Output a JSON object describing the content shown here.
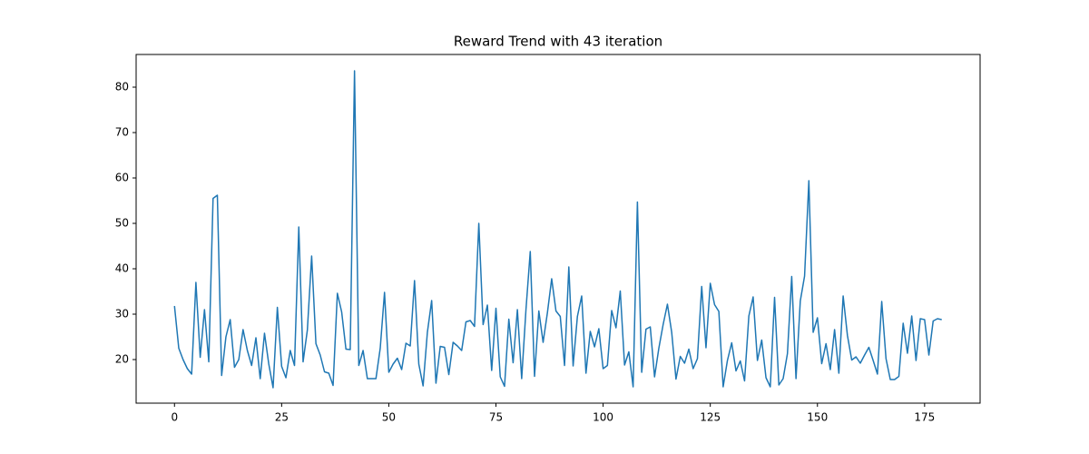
{
  "chart_data": {
    "type": "line",
    "title": "Reward Trend with 43 iteration",
    "x": [
      0,
      1,
      2,
      3,
      4,
      5,
      6,
      7,
      8,
      9,
      10,
      11,
      12,
      13,
      14,
      15,
      16,
      17,
      18,
      19,
      20,
      21,
      22,
      23,
      24,
      25,
      26,
      27,
      28,
      29,
      30,
      31,
      32,
      33,
      34,
      35,
      36,
      37,
      38,
      39,
      40,
      41,
      42,
      43,
      44,
      45,
      46,
      47,
      48,
      49,
      50,
      51,
      52,
      53,
      54,
      55,
      56,
      57,
      58,
      59,
      60,
      61,
      62,
      63,
      64,
      65,
      66,
      67,
      68,
      69,
      70,
      71,
      72,
      73,
      74,
      75,
      76,
      77,
      78,
      79,
      80,
      81,
      82,
      83,
      84,
      85,
      86,
      87,
      88,
      89,
      90,
      91,
      92,
      93,
      94,
      95,
      96,
      97,
      98,
      99,
      100,
      101,
      102,
      103,
      104,
      105,
      106,
      107,
      108,
      109,
      110,
      111,
      112,
      113,
      114,
      115,
      116,
      117,
      118,
      119,
      120,
      121,
      122,
      123,
      124,
      125,
      126,
      127,
      128,
      129,
      130,
      131,
      132,
      133,
      134,
      135,
      136,
      137,
      138,
      139,
      140,
      141,
      142,
      143,
      144,
      145,
      146,
      147,
      148,
      149,
      150,
      151,
      152,
      153,
      154,
      155,
      156,
      157,
      158,
      159,
      160,
      161,
      162,
      163,
      164,
      165,
      166,
      167,
      168,
      169,
      170,
      171,
      172,
      173,
      174,
      175,
      176,
      177,
      178,
      179
    ],
    "series": [
      {
        "color": "#1f77b4",
        "values": [
          31.8,
          22.5,
          20,
          18,
          16.8,
          37,
          20.5,
          31,
          19.5,
          55.5,
          56.2,
          16.5,
          25,
          28.8,
          18.3,
          20,
          26.6,
          22,
          18.7,
          24.8,
          15.8,
          25.8,
          19,
          13.8,
          31.5,
          18.5,
          16,
          22,
          18.7,
          49.2,
          19.5,
          26.5,
          42.8,
          23.5,
          21,
          17.3,
          17,
          14.3,
          34.6,
          30.5,
          22.3,
          22.2,
          83.6,
          18.7,
          22,
          15.8,
          15.8,
          15.8,
          22.5,
          34.8,
          17.2,
          19,
          20.3,
          17.8,
          23.6,
          23,
          37.4,
          19,
          14.2,
          26,
          33,
          14.8,
          22.9,
          22.7,
          16.7,
          23.8,
          23,
          22,
          28.3,
          28.6,
          27.3,
          50,
          27.7,
          32,
          17.6,
          31.3,
          16.2,
          14.1,
          28.9,
          19.3,
          31,
          15.8,
          31,
          43.8,
          16.3,
          30.7,
          23.8,
          30.3,
          37.8,
          30.7,
          29.5,
          18.7,
          40.4,
          18.6,
          29.5,
          34,
          17,
          26.2,
          22.8,
          26.8,
          18,
          18.7,
          30.8,
          27,
          35.1,
          18.8,
          21.7,
          14,
          54.7,
          17.2,
          26.7,
          27.2,
          16.2,
          22.5,
          27.7,
          32.2,
          26,
          15.7,
          20.7,
          19.2,
          22.3,
          18,
          20.2,
          36.1,
          22.6,
          36.8,
          32.1,
          30.6,
          14,
          19.8,
          23.7,
          17.5,
          19.7,
          15.3,
          29.6,
          33.8,
          19.8,
          24.3,
          16,
          14,
          33.7,
          14.4,
          15.8,
          21.3,
          38.3,
          15.8,
          32.9,
          38.4,
          59.4,
          26,
          29.2,
          19.1,
          23.5,
          17.8,
          26.6,
          17,
          34,
          25.3,
          19.9,
          20.6,
          19.2,
          21,
          22.7,
          19.8,
          16.8,
          32.8,
          20.2,
          15.6,
          15.6,
          16.3,
          28,
          21.4,
          29.6,
          19.8,
          29,
          28.8,
          21,
          28.5,
          29,
          28.8
        ]
      }
    ],
    "xlim": [
      -8.95,
      187.95
    ],
    "xticks": [
      0,
      25,
      50,
      75,
      100,
      125,
      150,
      175
    ],
    "ylim": [
      10.4,
      87.2
    ],
    "yticks": [
      20,
      30,
      40,
      50,
      60,
      70,
      80
    ]
  }
}
